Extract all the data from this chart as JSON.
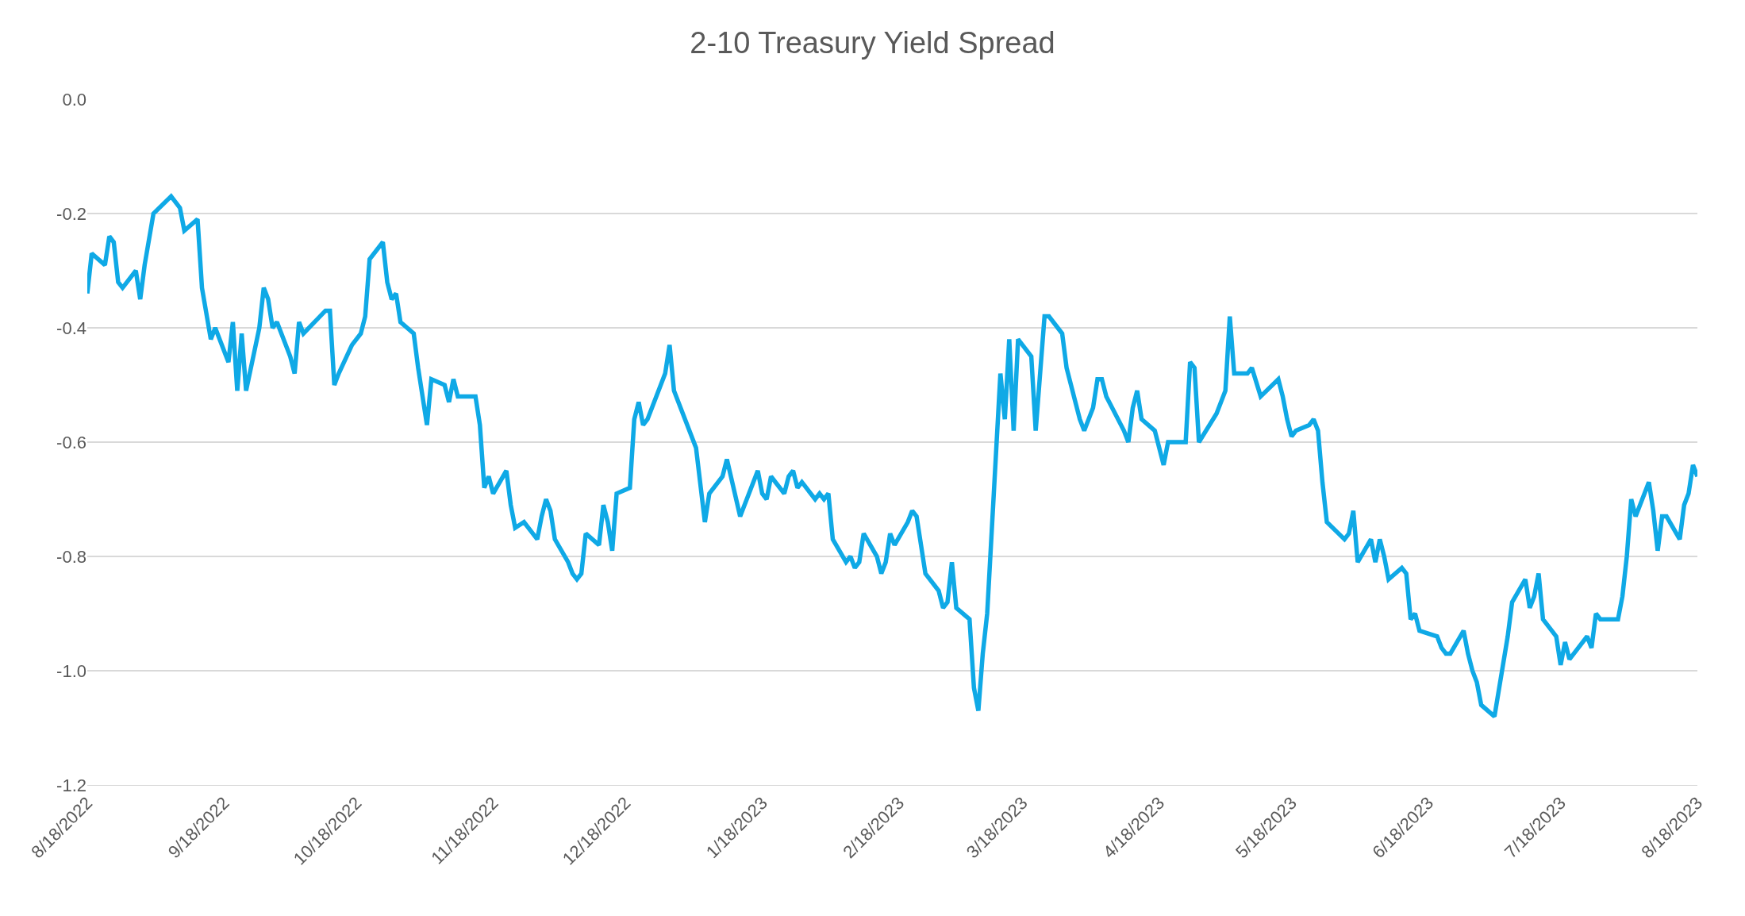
{
  "chart_data": {
    "type": "line",
    "title": "2-10 Treasury Yield Spread",
    "x": [
      "2022-08-18",
      "2022-08-19",
      "2022-08-22",
      "2022-08-23",
      "2022-08-24",
      "2022-08-25",
      "2022-08-26",
      "2022-08-29",
      "2022-08-30",
      "2022-08-31",
      "2022-09-02",
      "2022-09-06",
      "2022-09-08",
      "2022-09-09",
      "2022-09-12",
      "2022-09-13",
      "2022-09-15",
      "2022-09-16",
      "2022-09-19",
      "2022-09-20",
      "2022-09-21",
      "2022-09-22",
      "2022-09-23",
      "2022-09-26",
      "2022-09-27",
      "2022-09-28",
      "2022-09-29",
      "2022-09-30",
      "2022-10-03",
      "2022-10-04",
      "2022-10-05",
      "2022-10-06",
      "2022-10-11",
      "2022-10-12",
      "2022-10-13",
      "2022-10-14",
      "2022-10-17",
      "2022-10-19",
      "2022-10-20",
      "2022-10-21",
      "2022-10-24",
      "2022-10-25",
      "2022-10-26",
      "2022-10-27",
      "2022-10-28",
      "2022-10-31",
      "2022-11-01",
      "2022-11-02",
      "2022-11-03",
      "2022-11-04",
      "2022-11-07",
      "2022-11-08",
      "2022-11-09",
      "2022-11-10",
      "2022-11-14",
      "2022-11-15",
      "2022-11-16",
      "2022-11-17",
      "2022-11-18",
      "2022-11-21",
      "2022-11-22",
      "2022-11-23",
      "2022-11-25",
      "2022-11-28",
      "2022-11-29",
      "2022-11-30",
      "2022-12-01",
      "2022-12-02",
      "2022-12-05",
      "2022-12-06",
      "2022-12-07",
      "2022-12-08",
      "2022-12-09",
      "2022-12-12",
      "2022-12-13",
      "2022-12-14",
      "2022-12-15",
      "2022-12-16",
      "2022-12-19",
      "2022-12-20",
      "2022-12-21",
      "2022-12-22",
      "2022-12-23",
      "2022-12-27",
      "2022-12-28",
      "2022-12-29",
      "2023-01-03",
      "2023-01-05",
      "2023-01-06",
      "2023-01-09",
      "2023-01-10",
      "2023-01-13",
      "2023-01-17",
      "2023-01-18",
      "2023-01-19",
      "2023-01-20",
      "2023-01-23",
      "2023-01-24",
      "2023-01-25",
      "2023-01-26",
      "2023-01-27",
      "2023-01-30",
      "2023-01-31",
      "2023-02-01",
      "2023-02-02",
      "2023-02-03",
      "2023-02-06",
      "2023-02-07",
      "2023-02-08",
      "2023-02-09",
      "2023-02-10",
      "2023-02-13",
      "2023-02-14",
      "2023-02-15",
      "2023-02-16",
      "2023-02-17",
      "2023-02-20",
      "2023-02-21",
      "2023-02-22",
      "2023-02-24",
      "2023-02-26",
      "2023-02-27",
      "2023-02-28",
      "2023-03-01",
      "2023-03-02",
      "2023-03-03",
      "2023-03-06",
      "2023-03-07",
      "2023-03-08",
      "2023-03-09",
      "2023-03-10",
      "2023-03-13",
      "2023-03-14",
      "2023-03-15",
      "2023-03-16",
      "2023-03-17",
      "2023-03-20",
      "2023-03-21",
      "2023-03-23",
      "2023-03-24",
      "2023-03-27",
      "2023-03-28",
      "2023-03-31",
      "2023-04-01",
      "2023-04-03",
      "2023-04-04",
      "2023-04-05",
      "2023-04-06",
      "2023-04-10",
      "2023-04-11",
      "2023-04-12",
      "2023-04-13",
      "2023-04-14",
      "2023-04-17",
      "2023-04-19",
      "2023-04-20",
      "2023-04-24",
      "2023-04-25",
      "2023-04-26",
      "2023-04-27",
      "2023-05-01",
      "2023-05-03",
      "2023-05-04",
      "2023-05-05",
      "2023-05-08",
      "2023-05-09",
      "2023-05-11",
      "2023-05-15",
      "2023-05-16",
      "2023-05-17",
      "2023-05-18",
      "2023-05-19",
      "2023-05-22",
      "2023-05-23",
      "2023-05-24",
      "2023-05-25",
      "2023-05-26",
      "2023-05-30",
      "2023-05-31",
      "2023-06-01",
      "2023-06-02",
      "2023-06-05",
      "2023-06-06",
      "2023-06-07",
      "2023-06-08",
      "2023-06-09",
      "2023-06-12",
      "2023-06-13",
      "2023-06-14",
      "2023-06-15",
      "2023-06-16",
      "2023-06-20",
      "2023-06-21",
      "2023-06-22",
      "2023-06-23",
      "2023-06-26",
      "2023-06-27",
      "2023-06-28",
      "2023-06-29",
      "2023-06-30",
      "2023-07-03",
      "2023-07-06",
      "2023-07-07",
      "2023-07-10",
      "2023-07-11",
      "2023-07-12",
      "2023-07-13",
      "2023-07-14",
      "2023-07-17",
      "2023-07-18",
      "2023-07-19",
      "2023-07-20",
      "2023-07-24",
      "2023-07-25",
      "2023-07-26",
      "2023-07-27",
      "2023-07-31",
      "2023-08-01",
      "2023-08-02",
      "2023-08-03",
      "2023-08-04",
      "2023-08-07",
      "2023-08-08",
      "2023-08-09",
      "2023-08-10",
      "2023-08-11",
      "2023-08-14",
      "2023-08-15",
      "2023-08-16",
      "2023-08-17",
      "2023-08-18"
    ],
    "series": [
      {
        "color": "#0fa9e6",
        "values": [
          -0.34,
          -0.27,
          -0.29,
          -0.24,
          -0.25,
          -0.32,
          -0.33,
          -0.3,
          -0.35,
          -0.29,
          -0.2,
          -0.17,
          -0.19,
          -0.23,
          -0.21,
          -0.33,
          -0.42,
          -0.4,
          -0.46,
          -0.39,
          -0.51,
          -0.41,
          -0.51,
          -0.4,
          -0.33,
          -0.35,
          -0.4,
          -0.39,
          -0.45,
          -0.48,
          -0.39,
          -0.41,
          -0.37,
          -0.37,
          -0.5,
          -0.48,
          -0.43,
          -0.41,
          -0.38,
          -0.28,
          -0.25,
          -0.32,
          -0.35,
          -0.34,
          -0.39,
          -0.41,
          -0.47,
          -0.52,
          -0.57,
          -0.49,
          -0.5,
          -0.53,
          -0.49,
          -0.52,
          -0.52,
          -0.57,
          -0.68,
          -0.66,
          -0.69,
          -0.65,
          -0.71,
          -0.75,
          -0.74,
          -0.77,
          -0.73,
          -0.7,
          -0.72,
          -0.77,
          -0.81,
          -0.83,
          -0.84,
          -0.83,
          -0.76,
          -0.78,
          -0.71,
          -0.74,
          -0.79,
          -0.69,
          -0.68,
          -0.56,
          -0.53,
          -0.57,
          -0.56,
          -0.48,
          -0.43,
          -0.51,
          -0.61,
          -0.74,
          -0.69,
          -0.66,
          -0.63,
          -0.73,
          -0.65,
          -0.69,
          -0.7,
          -0.66,
          -0.69,
          -0.66,
          -0.65,
          -0.68,
          -0.67,
          -0.7,
          -0.69,
          -0.7,
          -0.69,
          -0.77,
          -0.81,
          -0.8,
          -0.82,
          -0.81,
          -0.76,
          -0.8,
          -0.83,
          -0.81,
          -0.76,
          -0.78,
          -0.74,
          -0.72,
          -0.73,
          -0.83,
          -0.85,
          -0.86,
          -0.89,
          -0.88,
          -0.81,
          -0.89,
          -0.91,
          -1.03,
          -1.07,
          -0.97,
          -0.9,
          -0.48,
          -0.56,
          -0.42,
          -0.58,
          -0.42,
          -0.45,
          -0.58,
          -0.38,
          -0.38,
          -0.41,
          -0.47,
          -0.56,
          -0.58,
          -0.54,
          -0.49,
          -0.49,
          -0.52,
          -0.58,
          -0.6,
          -0.54,
          -0.51,
          -0.56,
          -0.58,
          -0.64,
          -0.6,
          -0.6,
          -0.46,
          -0.47,
          -0.6,
          -0.55,
          -0.51,
          -0.38,
          -0.48,
          -0.48,
          -0.47,
          -0.52,
          -0.49,
          -0.52,
          -0.56,
          -0.59,
          -0.58,
          -0.57,
          -0.56,
          -0.58,
          -0.67,
          -0.74,
          -0.77,
          -0.76,
          -0.72,
          -0.81,
          -0.77,
          -0.81,
          -0.77,
          -0.8,
          -0.84,
          -0.82,
          -0.83,
          -0.91,
          -0.9,
          -0.93,
          -0.94,
          -0.96,
          -0.97,
          -0.97,
          -0.93,
          -0.97,
          -1.0,
          -1.02,
          -1.06,
          -1.08,
          -0.94,
          -0.88,
          -0.84,
          -0.89,
          -0.87,
          -0.83,
          -0.91,
          -0.94,
          -0.99,
          -0.95,
          -0.98,
          -0.94,
          -0.96,
          -0.9,
          -0.91,
          -0.91,
          -0.87,
          -0.8,
          -0.7,
          -0.73,
          -0.67,
          -0.72,
          -0.79,
          -0.73,
          -0.73,
          -0.77,
          -0.71,
          -0.69,
          -0.64,
          -0.66
        ]
      }
    ],
    "xlim": [
      "2022-08-18",
      "2023-08-18"
    ],
    "xticks": [
      {
        "value": "2022-08-18",
        "label": "8/18/2022"
      },
      {
        "value": "2022-09-18",
        "label": "9/18/2022"
      },
      {
        "value": "2022-10-18",
        "label": "10/18/2022"
      },
      {
        "value": "2022-11-18",
        "label": "11/18/2022"
      },
      {
        "value": "2022-12-18",
        "label": "12/18/2022"
      },
      {
        "value": "2023-01-18",
        "label": "1/18/2023"
      },
      {
        "value": "2023-02-18",
        "label": "2/18/2023"
      },
      {
        "value": "2023-03-18",
        "label": "3/18/2023"
      },
      {
        "value": "2023-04-18",
        "label": "4/18/2023"
      },
      {
        "value": "2023-05-18",
        "label": "5/18/2023"
      },
      {
        "value": "2023-06-18",
        "label": "6/18/2023"
      },
      {
        "value": "2023-07-18",
        "label": "7/18/2023"
      },
      {
        "value": "2023-08-18",
        "label": "8/18/2023"
      }
    ],
    "ylim": [
      -1.2,
      0
    ],
    "yticks": [
      {
        "value": -1.2,
        "label": "-1.2"
      },
      {
        "value": -1.0,
        "label": "-1.0"
      },
      {
        "value": -0.8,
        "label": "-0.8"
      },
      {
        "value": -0.6,
        "label": "-0.6"
      },
      {
        "value": -0.4,
        "label": "-0.4"
      },
      {
        "value": -0.2,
        "label": "-0.2"
      },
      {
        "value": 0,
        "label": "0.0"
      }
    ],
    "grid": "y",
    "marker": "none",
    "line_style": "solid"
  }
}
